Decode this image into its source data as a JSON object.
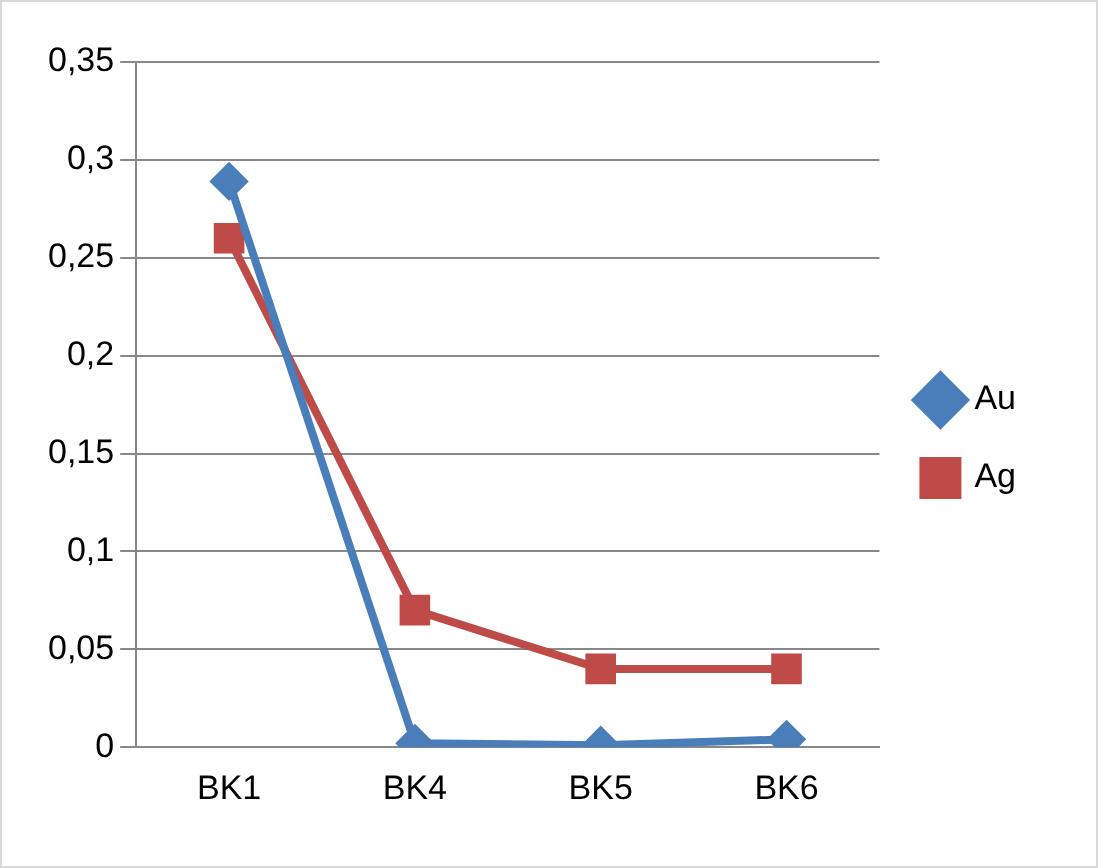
{
  "chart_data": {
    "type": "line",
    "categories": [
      "BK1",
      "BK4",
      "BK5",
      "BK6"
    ],
    "series": [
      {
        "name": "Au",
        "color": "#4a7ebb",
        "marker": "diamond",
        "values": [
          0.289,
          0.002,
          0.001,
          0.004
        ]
      },
      {
        "name": "Ag",
        "color": "#be4b48",
        "marker": "square",
        "values": [
          0.26,
          0.07,
          0.04,
          0.04
        ]
      }
    ],
    "ylim": [
      0,
      0.35
    ],
    "yticks": [
      {
        "value": 0,
        "label": "0"
      },
      {
        "value": 0.05,
        "label": "0,05"
      },
      {
        "value": 0.1,
        "label": "0,1"
      },
      {
        "value": 0.15,
        "label": "0,15"
      },
      {
        "value": 0.2,
        "label": "0,2"
      },
      {
        "value": 0.25,
        "label": "0,25"
      },
      {
        "value": 0.3,
        "label": "0,3"
      },
      {
        "value": 0.35,
        "label": "0,35"
      }
    ],
    "grid": "y",
    "legend": "right",
    "line_style": "solid"
  }
}
